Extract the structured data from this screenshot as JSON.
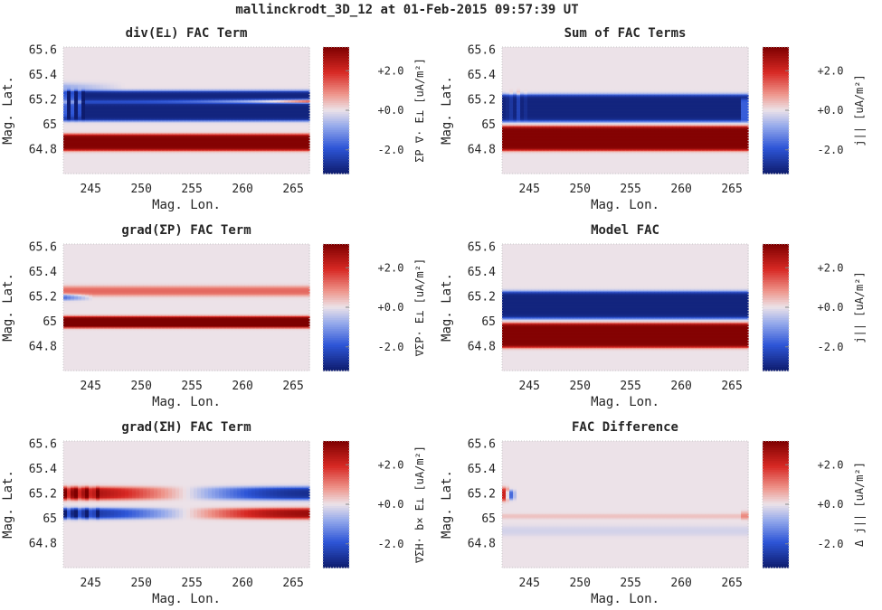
{
  "figure": {
    "title": "mallinckrodt_3D_12 at 01-Feb-2015 09:57:39 UT"
  },
  "chart_data": [
    {
      "type": "heatmap",
      "title": "div(E⊥) FAC Term",
      "xlabel": "Mag. Lon.",
      "ylabel": "Mag. Lat.",
      "xlim": [
        242.3,
        266.6
      ],
      "ylim": [
        64.6,
        65.62
      ],
      "xticks": [
        "245",
        "250",
        "255",
        "260",
        "265"
      ],
      "yticks": [
        "64.8",
        "65",
        "65.2",
        "65.4",
        "65.6"
      ],
      "colorbar": {
        "label": "ΣP ∇· E⊥ [uA/m²]",
        "ticks": [
          "-2.0",
          "+0.0",
          "+2.0"
        ],
        "range": [
          -3.2,
          3.2
        ]
      },
      "features": [
        {
          "lat": [
            64.78,
            64.92
          ],
          "value": 3.0,
          "variation": "uniform"
        },
        {
          "lat": [
            64.96,
            65.02
          ],
          "value": 0.2,
          "variation": "uniform"
        },
        {
          "lat": [
            65.02,
            65.27
          ],
          "value": -2.9,
          "variation": "negative band with thin red sliver near 65.18, widening to the east"
        },
        {
          "lat": [
            65.28,
            65.32
          ],
          "value": -0.8,
          "variation": "western edge"
        }
      ]
    },
    {
      "type": "heatmap",
      "title": "Sum of FAC Terms",
      "xlabel": "Mag. Lon.",
      "ylabel": "Mag. Lat.",
      "xlim": [
        242.3,
        266.6
      ],
      "ylim": [
        64.6,
        65.62
      ],
      "xticks": [
        "245",
        "250",
        "255",
        "260",
        "265"
      ],
      "yticks": [
        "64.8",
        "65",
        "65.2",
        "65.4",
        "65.6"
      ],
      "colorbar": {
        "label": "j|| [uA/m²]",
        "ticks": [
          "-2.0",
          "+0.0",
          "+2.0"
        ],
        "range": [
          -3.2,
          3.2
        ]
      },
      "features": [
        {
          "lat": [
            64.78,
            64.98
          ],
          "value": 3.0,
          "variation": "uniform"
        },
        {
          "lat": [
            65.02,
            65.24
          ],
          "value": -2.9,
          "variation": "uniform, striations near west edge"
        }
      ]
    },
    {
      "type": "heatmap",
      "title": "grad(ΣP) FAC Term",
      "xlabel": "Mag. Lon.",
      "ylabel": "Mag. Lat.",
      "xlim": [
        242.3,
        266.6
      ],
      "ylim": [
        64.6,
        65.62
      ],
      "xticks": [
        "245",
        "250",
        "255",
        "260",
        "265"
      ],
      "yticks": [
        "64.8",
        "65",
        "65.2",
        "65.4",
        "65.6"
      ],
      "colorbar": {
        "label": "∇ΣP· E⊥ [uA/m²]",
        "ticks": [
          "-2.0",
          "+0.0",
          "+2.0"
        ],
        "range": [
          -3.2,
          3.2
        ]
      },
      "features": [
        {
          "lat": [
            64.94,
            65.04
          ],
          "value": 3.2,
          "variation": "uniform"
        },
        {
          "lat": [
            65.2,
            65.28
          ],
          "value": 1.2,
          "variation": "thin positive band"
        },
        {
          "lat": [
            65.18,
            65.22
          ],
          "value": -1.5,
          "variation": "negative near western edge"
        }
      ]
    },
    {
      "type": "heatmap",
      "title": "Model FAC",
      "xlabel": "Mag. Lon.",
      "ylabel": "Mag. Lat.",
      "xlim": [
        242.3,
        266.6
      ],
      "ylim": [
        64.6,
        65.62
      ],
      "xticks": [
        "245",
        "250",
        "255",
        "260",
        "265"
      ],
      "yticks": [
        "64.8",
        "65",
        "65.2",
        "65.4",
        "65.6"
      ],
      "colorbar": {
        "label": "j|| [uA/m²]",
        "ticks": [
          "-2.0",
          "+0.0",
          "+2.0"
        ],
        "range": [
          -3.2,
          3.2
        ]
      },
      "features": [
        {
          "lat": [
            64.78,
            64.98
          ],
          "value": 3.0,
          "variation": "uniform"
        },
        {
          "lat": [
            65.02,
            65.24
          ],
          "value": -2.9,
          "variation": "uniform"
        }
      ]
    },
    {
      "type": "heatmap",
      "title": "grad(ΣH) FAC Term",
      "xlabel": "Mag. Lon.",
      "ylabel": "Mag. Lat.",
      "xlim": [
        242.3,
        266.6
      ],
      "ylim": [
        64.6,
        65.62
      ],
      "xticks": [
        "245",
        "250",
        "255",
        "260",
        "265"
      ],
      "yticks": [
        "64.8",
        "65",
        "65.2",
        "65.4",
        "65.6"
      ],
      "colorbar": {
        "label": "∇ΣH· b× E⊥ [uA/m²]",
        "ticks": [
          "-2.0",
          "+0.0",
          "+2.0"
        ],
        "range": [
          -3.2,
          3.2
        ]
      },
      "features": [
        {
          "lat": [
            65.15,
            65.25
          ],
          "value": 2.5,
          "variation": "positive in west, reversing to negative in east"
        },
        {
          "lat": [
            64.99,
            65.08
          ],
          "value": -2.5,
          "variation": "negative in west, reversing to positive in east"
        }
      ]
    },
    {
      "type": "heatmap",
      "title": "FAC Difference",
      "xlabel": "Mag. Lon.",
      "ylabel": "Mag. Lat.",
      "xlim": [
        242.3,
        266.6
      ],
      "ylim": [
        64.6,
        65.62
      ],
      "xticks": [
        "245",
        "250",
        "255",
        "260",
        "265"
      ],
      "yticks": [
        "64.8",
        "65",
        "65.2",
        "65.4",
        "65.6"
      ],
      "colorbar": {
        "label": "Δ j|| [uA/m²]",
        "ticks": [
          "-2.0",
          "+0.0",
          "+2.0"
        ],
        "range": [
          -3.2,
          3.2
        ]
      },
      "features": [
        {
          "lat": [
            65.15,
            65.25
          ],
          "value": 2.0,
          "variation": "small spot at western edge"
        },
        {
          "lat": [
            64.99,
            65.03
          ],
          "value": 0.3,
          "variation": "faint positive band"
        },
        {
          "lat": [
            64.86,
            64.93
          ],
          "value": -0.2,
          "variation": "faint negative band"
        }
      ]
    }
  ]
}
